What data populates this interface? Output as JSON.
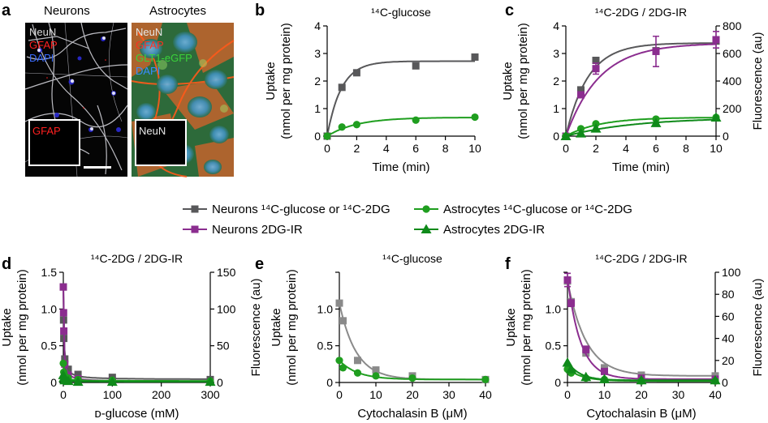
{
  "figure": {
    "panel_a": {
      "label": "a",
      "neurons": {
        "title": "Neurons",
        "stains": [
          "NeuN",
          "GFAP",
          "DAPI"
        ],
        "inset": "GFAP"
      },
      "astrocytes": {
        "title": "Astrocytes",
        "stains": [
          "NeuN",
          "GFAP",
          "GLT1-eGFP",
          "DAPI"
        ],
        "inset": "NeuN"
      }
    },
    "legend": [
      {
        "name": "Neurons ¹⁴C-glucose or ¹⁴C-2DG",
        "color": "#58585a",
        "marker": "square"
      },
      {
        "name": "Astrocytes ¹⁴C-glucose or ¹⁴C-2DG",
        "color": "#1f9e1f",
        "marker": "circle"
      },
      {
        "name": "Neurons 2DG-IR",
        "color": "#8b2d8f",
        "marker": "square"
      },
      {
        "name": "Astrocytes 2DG-IR",
        "color": "#0f8a1a",
        "marker": "triangle"
      }
    ],
    "colors": {
      "neuron": "#58585a",
      "neuron_fit": "#58585a",
      "astro": "#1f9e1f",
      "purple": "#8b2d8f",
      "astro_ir": "#0f8a1a",
      "light_gray": "#8a8a8a"
    }
  },
  "chart_data": [
    {
      "id": "b",
      "label": "b",
      "type": "line",
      "title": "¹⁴C-glucose",
      "xlabel": "Time (min)",
      "ylabel": [
        "Uptake",
        "(nmol per mg protein)"
      ],
      "xlim": [
        0,
        10
      ],
      "xticks": [
        0,
        2,
        4,
        6,
        8,
        10
      ],
      "ylim": [
        0,
        4
      ],
      "yticks": [
        0,
        1,
        2,
        3,
        4
      ],
      "series": [
        {
          "name": "Neurons ¹⁴C-glucose",
          "axis": "left",
          "color": "#58585a",
          "marker": "square",
          "x": [
            0,
            1,
            2,
            6,
            10
          ],
          "y": [
            0.0,
            1.77,
            2.3,
            2.55,
            2.87
          ],
          "fit": {
            "kind": "rise",
            "A": 2.72,
            "k": 1.05
          }
        },
        {
          "name": "Astrocytes ¹⁴C-glucose",
          "axis": "left",
          "color": "#1f9e1f",
          "marker": "circle",
          "x": [
            0,
            1,
            2,
            6,
            10
          ],
          "y": [
            0.0,
            0.33,
            0.42,
            0.58,
            0.69
          ],
          "fit": {
            "kind": "rise",
            "A": 0.68,
            "k": 0.5
          }
        }
      ]
    },
    {
      "id": "c",
      "label": "c",
      "type": "line",
      "title": "¹⁴C-2DG / 2DG-IR",
      "xlabel": "Time (min)",
      "ylabel": [
        "Uptake",
        "(nmol per mg protein)"
      ],
      "y2label": "Fluorescence (au)",
      "xlim": [
        0,
        10
      ],
      "xticks": [
        0,
        2,
        4,
        6,
        8,
        10
      ],
      "ylim": [
        0,
        4
      ],
      "yticks": [
        0,
        1,
        2,
        3,
        4
      ],
      "y2lim": [
        0,
        800
      ],
      "y2ticks": [
        0,
        200,
        400,
        600,
        800
      ],
      "series": [
        {
          "name": "Neurons ¹⁴C-2DG",
          "axis": "left",
          "color": "#58585a",
          "marker": "square",
          "x": [
            0,
            1,
            2,
            6,
            10
          ],
          "y": [
            0.0,
            1.68,
            2.75,
            3.1,
            3.45
          ],
          "fit": {
            "kind": "rise",
            "A": 3.38,
            "k": 0.68
          }
        },
        {
          "name": "Neurons 2DG-IR",
          "axis": "right",
          "color": "#8b2d8f",
          "marker": "square",
          "x": [
            0,
            1,
            2,
            6,
            10
          ],
          "y": [
            0,
            300,
            490,
            615,
            700
          ],
          "err": [
            0,
            20,
            40,
            110,
            60
          ],
          "fit": {
            "kind": "rise",
            "A": 675,
            "k": 0.45
          }
        },
        {
          "name": "Astrocytes ¹⁴C-2DG",
          "axis": "left",
          "color": "#1f9e1f",
          "marker": "circle",
          "x": [
            0,
            1,
            2,
            6,
            10
          ],
          "y": [
            0.0,
            0.27,
            0.45,
            0.62,
            0.68
          ],
          "fit": {
            "kind": "rise",
            "A": 0.68,
            "k": 0.45
          }
        },
        {
          "name": "Astrocytes 2DG-IR",
          "axis": "right",
          "color": "#0f8a1a",
          "marker": "triangle",
          "x": [
            0,
            1,
            2,
            6,
            10
          ],
          "y": [
            0,
            20,
            55,
            95,
            135
          ],
          "fit": {
            "kind": "rise",
            "A": 135,
            "k": 0.22
          }
        }
      ]
    },
    {
      "id": "d",
      "label": "d",
      "type": "line",
      "title": "¹⁴C-2DG / 2DG-IR",
      "xlabel": "ᴅ-glucose (mM)",
      "ylabel": [
        "Uptake",
        "(nmol per mg protein)"
      ],
      "y2label": "Fluorescence (au)",
      "xlim": [
        0,
        300
      ],
      "xticks": [
        0,
        100,
        200,
        300
      ],
      "ylim": [
        0,
        1.5
      ],
      "yticks": [
        0,
        0.5,
        1.0,
        1.5
      ],
      "ytickfmt": 1,
      "y2lim": [
        0,
        150
      ],
      "y2ticks": [
        0,
        50,
        100,
        150
      ],
      "series": [
        {
          "name": "Neurons ¹⁴C-2DG",
          "axis": "left",
          "color": "#58585a",
          "marker": "square",
          "x": [
            0,
            0.5,
            1,
            3,
            10,
            30,
            100,
            300
          ],
          "y": [
            1.3,
            0.85,
            0.6,
            0.32,
            0.18,
            0.11,
            0.07,
            0.04
          ],
          "fit": {
            "kind": "inhib",
            "A": 1.25,
            "K": 1.2,
            "C": 0.04
          }
        },
        {
          "name": "Neurons 2DG-IR",
          "axis": "right",
          "color": "#8b2d8f",
          "marker": "square",
          "x": [
            0,
            0.5,
            1,
            3,
            10,
            30,
            100,
            300
          ],
          "y": [
            130,
            95,
            70,
            25,
            10,
            5,
            2,
            1
          ],
          "fit": {
            "kind": "inhib",
            "A": 130,
            "K": 1.0,
            "C": 1
          }
        },
        {
          "name": "Astrocytes ¹⁴C-2DG",
          "axis": "left",
          "color": "#1f9e1f",
          "marker": "circle",
          "x": [
            0,
            1,
            3,
            10,
            30,
            100,
            300
          ],
          "y": [
            0.26,
            0.14,
            0.09,
            0.06,
            0.04,
            0.03,
            0.02
          ],
          "fit": {
            "kind": "inhib",
            "A": 0.24,
            "K": 1.5,
            "C": 0.02
          }
        },
        {
          "name": "Astrocytes 2DG-IR",
          "axis": "right",
          "color": "#0f8a1a",
          "marker": "triangle",
          "x": [
            0,
            1,
            3,
            10,
            30,
            100,
            300
          ],
          "y": [
            10,
            6,
            3,
            2,
            1,
            1,
            1
          ],
          "fit": {
            "kind": "inhib",
            "A": 10,
            "K": 2,
            "C": 1
          }
        }
      ]
    },
    {
      "id": "e",
      "label": "e",
      "type": "line",
      "title": "¹⁴C-glucose",
      "xlabel": "Cytochalasin B (μM)",
      "ylabel": [
        "Uptake",
        "(nmol per mg protein)"
      ],
      "xlim": [
        0,
        40
      ],
      "xticks": [
        0,
        10,
        20,
        30,
        40
      ],
      "ylim": [
        0,
        1.5
      ],
      "yticks": [
        0,
        0.5,
        1.0,
        1.5
      ],
      "ytickfmt": 1,
      "ytickhide": [
        1.5
      ],
      "series": [
        {
          "name": "Neurons ¹⁴C-glucose",
          "axis": "left",
          "color": "#8a8a8a",
          "marker": "square",
          "x": [
            0,
            1,
            5,
            10,
            20,
            40
          ],
          "y": [
            1.08,
            0.84,
            0.3,
            0.17,
            0.09,
            0.04
          ],
          "fit": {
            "kind": "exp",
            "A": 1.04,
            "k": 0.22,
            "C": 0.04
          }
        },
        {
          "name": "Astrocytes ¹⁴C-glucose",
          "axis": "left",
          "color": "#1f9e1f",
          "marker": "circle",
          "x": [
            0,
            1,
            5,
            10,
            20,
            40
          ],
          "y": [
            0.3,
            0.2,
            0.13,
            0.09,
            0.06,
            0.04
          ],
          "fit": {
            "kind": "exp",
            "A": 0.26,
            "k": 0.2,
            "C": 0.04
          }
        }
      ]
    },
    {
      "id": "f",
      "label": "f",
      "type": "line",
      "title": "¹⁴C-2DG / 2DG-IR",
      "xlabel": "Cytochalasin B (μM)",
      "ylabel": [
        "Uptake",
        "(nmol per mg protein)"
      ],
      "y2label": "Fluorescence (au)",
      "xlim": [
        0,
        40
      ],
      "xticks": [
        0,
        10,
        20,
        30,
        40
      ],
      "ylim": [
        0,
        1.5
      ],
      "yticks": [
        0,
        0.5,
        1.0,
        1.5
      ],
      "ytickfmt": 1,
      "ytickhide": [
        1.5
      ],
      "y2lim": [
        0,
        100
      ],
      "y2ticks": [
        0,
        20,
        40,
        60,
        80,
        100
      ],
      "series": [
        {
          "name": "Neurons ¹⁴C-2DG",
          "axis": "left",
          "color": "#8a8a8a",
          "marker": "square",
          "x": [
            0,
            1,
            5,
            10,
            20,
            40
          ],
          "y": [
            1.38,
            1.1,
            0.4,
            0.2,
            0.1,
            0.09
          ],
          "fit": {
            "kind": "exp",
            "A": 1.3,
            "k": 0.2,
            "C": 0.09
          }
        },
        {
          "name": "Neurons 2DG-IR",
          "axis": "right",
          "color": "#8b2d8f",
          "marker": "square",
          "x": [
            0,
            1,
            5,
            10,
            20,
            40
          ],
          "y": [
            93,
            72,
            30,
            10,
            4,
            3
          ],
          "err": [
            6,
            3,
            3,
            2,
            1,
            1
          ],
          "fit": {
            "kind": "exp",
            "A": 92,
            "k": 0.28,
            "C": 3
          }
        },
        {
          "name": "Astrocytes ¹⁴C-2DG",
          "axis": "left",
          "color": "#1f9e1f",
          "marker": "circle",
          "x": [
            0,
            1,
            5,
            10,
            20,
            40
          ],
          "y": [
            0.18,
            0.13,
            0.06,
            0.04,
            0.02,
            0.02
          ],
          "fit": {
            "kind": "exp",
            "A": 0.17,
            "k": 0.25,
            "C": 0.02
          }
        },
        {
          "name": "Astrocytes 2DG-IR",
          "axis": "right",
          "color": "#0f8a1a",
          "marker": "triangle",
          "x": [
            0,
            1,
            5,
            10,
            20,
            40
          ],
          "y": [
            18,
            12,
            5,
            3,
            2,
            2
          ],
          "fit": {
            "kind": "exp",
            "A": 17,
            "k": 0.3,
            "C": 2
          }
        }
      ]
    }
  ]
}
